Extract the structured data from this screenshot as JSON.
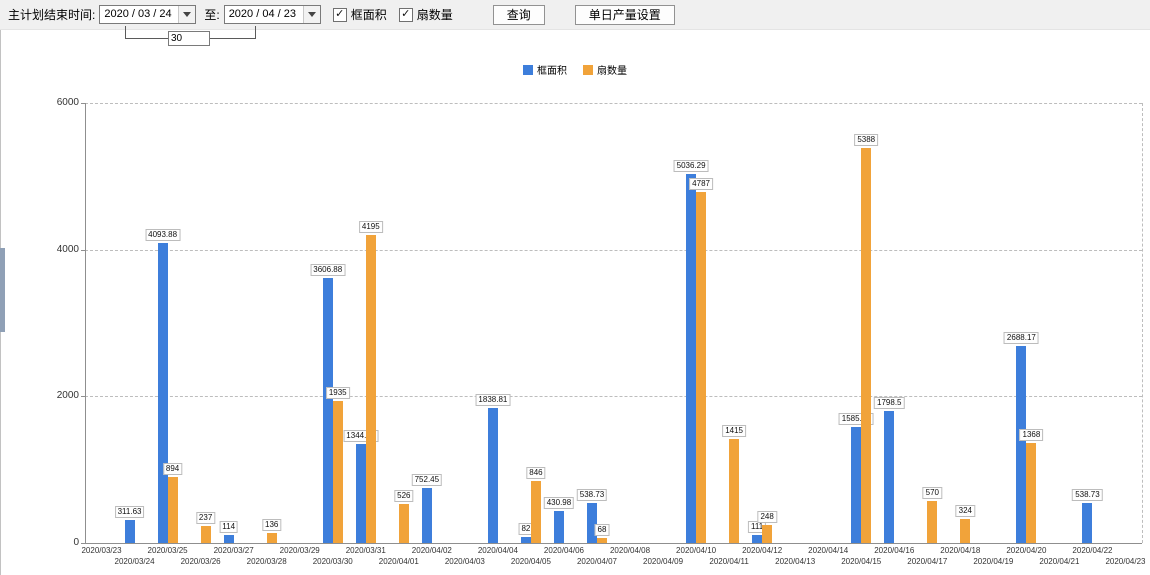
{
  "toolbar": {
    "plan_end_label": "主计划结束时间:",
    "date_from": "2020 / 03 / 24",
    "to_label": "至:",
    "date_to": "2020 / 04 / 23",
    "days_between": "30",
    "checkbox_frame_area": "框面积",
    "checkbox_fan_count": "扇数量",
    "query_button": "查询",
    "daily_output_button": "单日产量设置"
  },
  "chart_data": {
    "type": "bar",
    "title": "",
    "xlabel": "",
    "ylabel": "",
    "ylim": [
      0,
      6000
    ],
    "yticks": [
      0,
      2000,
      4000,
      6000
    ],
    "grid": "dashed-horizontal",
    "legend_position": "top-center",
    "categories": [
      "2020/03/23",
      "2020/03/24",
      "2020/03/25",
      "2020/03/26",
      "2020/03/27",
      "2020/03/28",
      "2020/03/29",
      "2020/03/30",
      "2020/03/31",
      "2020/04/01",
      "2020/04/02",
      "2020/04/03",
      "2020/04/04",
      "2020/04/05",
      "2020/04/06",
      "2020/04/07",
      "2020/04/08",
      "2020/04/09",
      "2020/04/10",
      "2020/04/11",
      "2020/04/12",
      "2020/04/13",
      "2020/04/14",
      "2020/04/15",
      "2020/04/16",
      "2020/04/17",
      "2020/04/18",
      "2020/04/19",
      "2020/04/20",
      "2020/04/21",
      "2020/04/22",
      "2020/04/23"
    ],
    "series": [
      {
        "name": "框面积",
        "color": "#3d7edb",
        "values": [
          null,
          311.63,
          4093.88,
          null,
          114,
          null,
          null,
          3606.88,
          1344.95,
          null,
          752.45,
          null,
          1838.81,
          82,
          430.98,
          538.73,
          null,
          null,
          5036.29,
          null,
          111,
          null,
          null,
          1585.96,
          1798.5,
          null,
          null,
          null,
          2688.17,
          null,
          538.73,
          null
        ]
      },
      {
        "name": "扇数量",
        "color": "#f1a33a",
        "values": [
          null,
          null,
          894,
          237,
          null,
          136,
          null,
          1935,
          4195,
          526,
          null,
          null,
          null,
          846,
          null,
          68,
          null,
          null,
          4787,
          1415,
          248,
          null,
          null,
          5388,
          null,
          570,
          324,
          null,
          1368,
          null,
          null,
          null
        ]
      }
    ]
  }
}
